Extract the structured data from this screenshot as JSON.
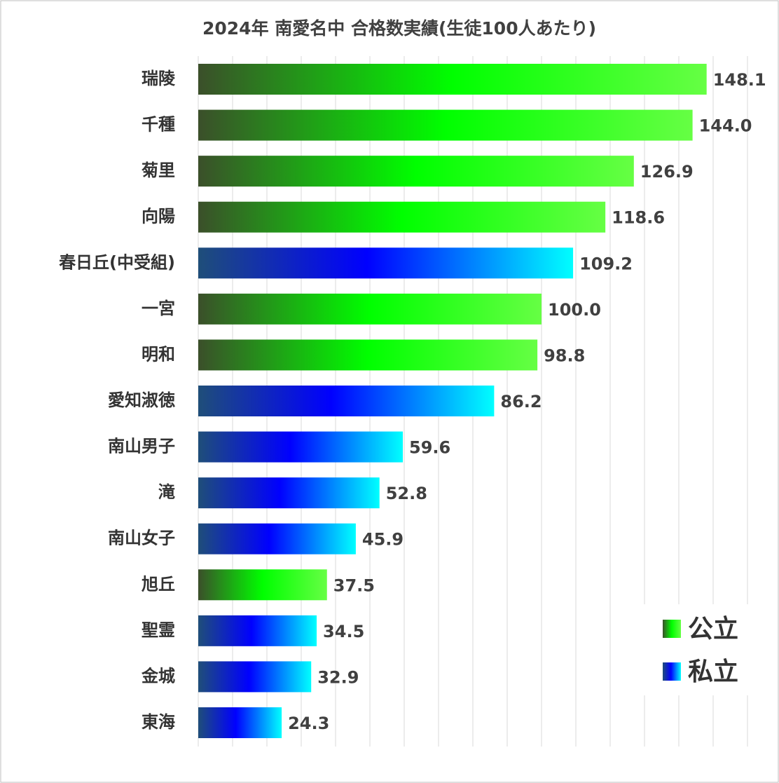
{
  "chart_data": {
    "type": "bar",
    "orientation": "horizontal",
    "title": "2024年 南愛名中 合格数実績(生徒100人あたり)",
    "categories": [
      "瑞陵",
      "千種",
      "菊里",
      "向陽",
      "春日丘(中受組)",
      "一宮",
      "明和",
      "愛知淑徳",
      "南山男子",
      "滝",
      "南山女子",
      "旭丘",
      "聖霊",
      "金城",
      "東海"
    ],
    "series": [
      {
        "name": "公立",
        "color": "#00ff00",
        "values": [
          148.1,
          144.0,
          126.9,
          118.6,
          null,
          100.0,
          98.8,
          null,
          null,
          null,
          null,
          37.5,
          null,
          null,
          null
        ],
        "value_labels": [
          "148.1",
          "144.0",
          "126.9",
          "118.6",
          null,
          "100.0",
          "98.8",
          null,
          null,
          null,
          null,
          "37.5",
          null,
          null,
          null
        ]
      },
      {
        "name": "私立",
        "color": "#0000ff",
        "values": [
          null,
          null,
          null,
          null,
          109.2,
          null,
          null,
          86.2,
          59.6,
          52.8,
          45.9,
          null,
          34.5,
          32.9,
          24.3
        ],
        "value_labels": [
          null,
          null,
          null,
          null,
          "109.2",
          null,
          null,
          "86.2",
          "59.6",
          "52.8",
          "45.9",
          null,
          "34.5",
          "32.9",
          "24.3"
        ]
      }
    ],
    "xlim": [
      0,
      160
    ],
    "xticks": [
      0,
      10,
      20,
      30,
      40,
      50,
      60,
      70,
      80,
      90,
      100,
      110,
      120,
      130,
      140,
      150,
      160
    ],
    "grid": true,
    "legend": "lower right"
  }
}
